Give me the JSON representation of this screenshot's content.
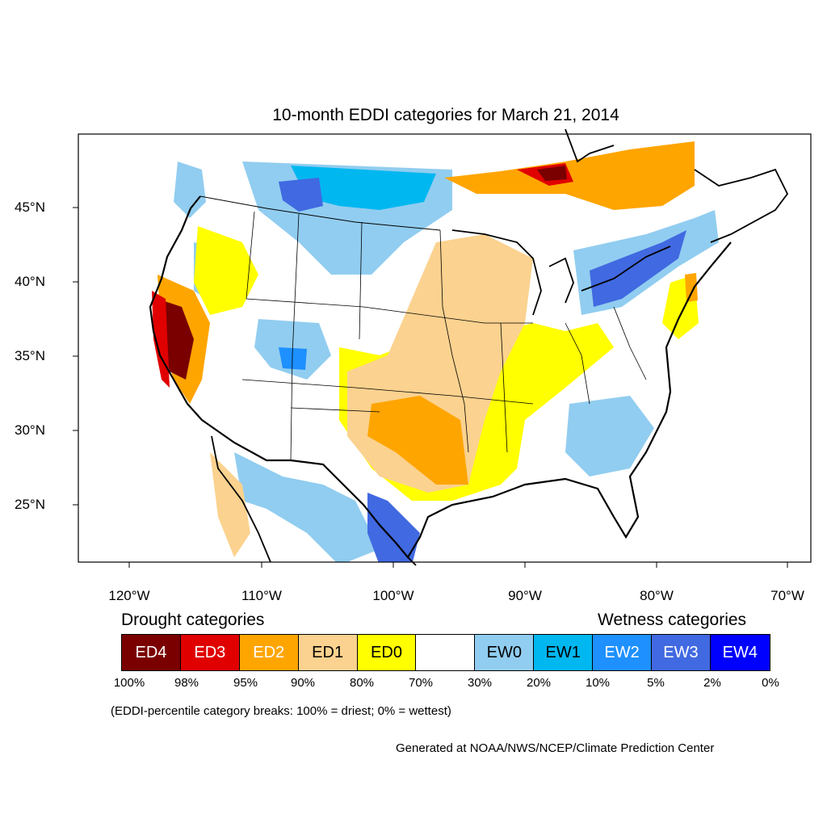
{
  "title": "10-month EDDI categories for March 21, 2014",
  "lat_labels": [
    "45°N",
    "40°N",
    "35°N",
    "30°N",
    "25°N"
  ],
  "lon_labels": [
    "120°W",
    "110°W",
    "100°W",
    "90°W",
    "80°W",
    "70°W"
  ],
  "legend": {
    "drought_heading": "Drought categories",
    "wetness_heading": "Wetness categories",
    "categories": [
      {
        "label": "ED4",
        "color": "#7a0000",
        "text_color": "#ffffff"
      },
      {
        "label": "ED3",
        "color": "#e00000",
        "text_color": "#ffffff"
      },
      {
        "label": "ED2",
        "color": "#ffa500",
        "text_color": "#ffffff"
      },
      {
        "label": "ED1",
        "color": "#fbd28f",
        "text_color": "#000000"
      },
      {
        "label": "ED0",
        "color": "#ffff00",
        "text_color": "#000000"
      },
      {
        "label": "",
        "color": "#ffffff",
        "text_color": "#000000"
      },
      {
        "label": "EW0",
        "color": "#91cdf0",
        "text_color": "#000000"
      },
      {
        "label": "EW1",
        "color": "#00b7f0",
        "text_color": "#000000"
      },
      {
        "label": "EW2",
        "color": "#1e90ff",
        "text_color": "#ffffff"
      },
      {
        "label": "EW3",
        "color": "#4169e1",
        "text_color": "#ffffff"
      },
      {
        "label": "EW4",
        "color": "#0000ff",
        "text_color": "#ffffff"
      }
    ],
    "breaks": [
      "100%",
      "98%",
      "95%",
      "90%",
      "80%",
      "70%",
      "30%",
      "20%",
      "10%",
      "5%",
      "2%",
      "0%"
    ]
  },
  "note": "(EDDI-percentile category breaks: 100% = driest; 0% = wettest)",
  "credit": "Generated at NOAA/NWS/NCEP/Climate Prediction Center"
}
